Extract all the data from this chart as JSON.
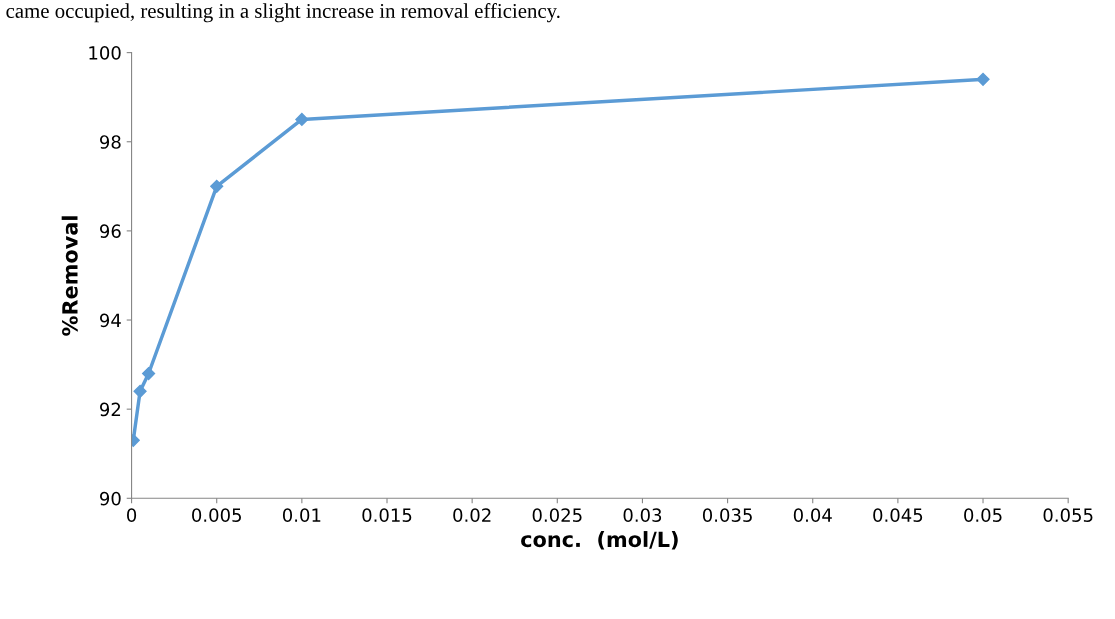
{
  "chart_data": {
    "type": "line",
    "xlabel": "conc.  (mol/L)",
    "ylabel": "%Removal",
    "annotations": [
      "came occupied, resulting in a slight increase in removal efficiency."
    ],
    "x": [
      0.0001,
      0.0005,
      0.001,
      0.005,
      0.01,
      0.05
    ],
    "series": [
      {
        "color": "#5b9bd5",
        "values": [
          91.3,
          92.4,
          92.8,
          97.0,
          98.5,
          99.4
        ]
      }
    ],
    "xlim": [
      0,
      0.055
    ],
    "ylim": [
      90,
      100
    ],
    "xticks": [
      0,
      0.005,
      0.01,
      0.015,
      0.02,
      0.025,
      0.03,
      0.035,
      0.04,
      0.045,
      0.05,
      0.055
    ],
    "yticks": [
      90,
      92,
      94,
      96,
      98,
      100
    ],
    "grid": false,
    "legend": false,
    "marker": "diamond",
    "line_style": "solid"
  }
}
